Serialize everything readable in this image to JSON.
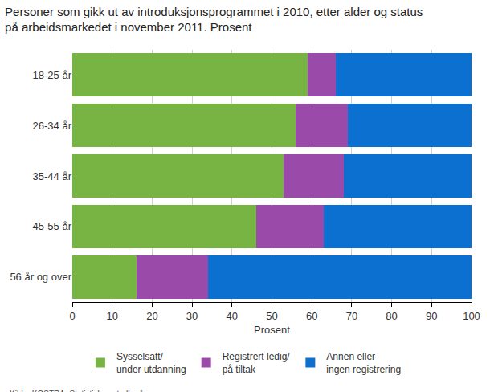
{
  "chart_data": {
    "type": "bar",
    "orientation": "horizontal",
    "stacked": true,
    "grid": true,
    "legend": "bottom",
    "data_labels": false,
    "title": "Personer som gikk ut av introduksjonsprogrammet i 2010, etter alder og status\npå arbeidsmarkedet i november 2011. Prosent",
    "x_label": "Prosent",
    "source": "Kilde: KOSTRA, Statistisk sentralbyrå.",
    "categories": [
      "18-25 år",
      "26-34 år",
      "35-44 år",
      "45-55 år",
      "56 år og over"
    ],
    "series": [
      {
        "name": "Sysselsatt/\nunder utdanning",
        "color": "#78b443",
        "values": [
          59,
          56,
          53,
          46,
          16
        ]
      },
      {
        "name": "Registrert ledig/\npå tiltak",
        "color": "#9a4aa8",
        "values": [
          7,
          13,
          15,
          17,
          18
        ]
      },
      {
        "name": "Annen eller\ningen registrering",
        "color": "#0b70d0",
        "values": [
          34,
          31,
          32,
          37,
          66
        ]
      }
    ],
    "xlim": [
      0,
      100
    ],
    "xticks": [
      0,
      10,
      20,
      30,
      40,
      50,
      60,
      70,
      80,
      90,
      100
    ]
  }
}
